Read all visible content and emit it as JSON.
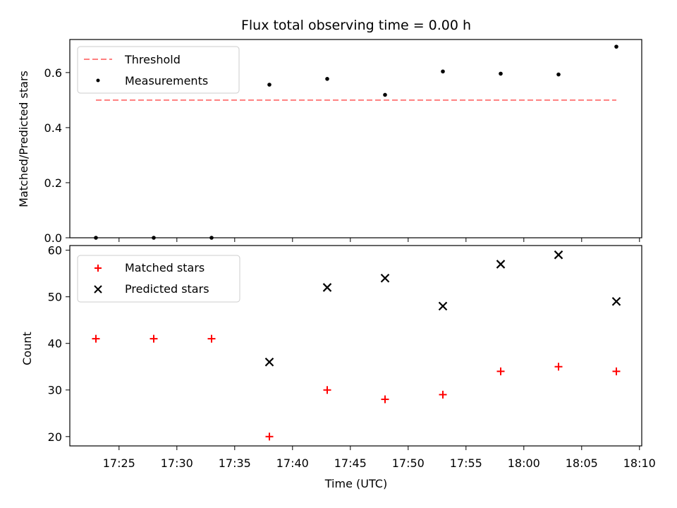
{
  "chart_data": [
    {
      "type": "scatter",
      "title": "Flux total observing time = 0.00 h",
      "xlabel": "",
      "ylabel": "Matched/Predicted stars",
      "ylim": [
        0,
        0.72
      ],
      "yticks": [
        "0.0",
        "0.2",
        "0.4",
        "0.6"
      ],
      "ytick_values": [
        0,
        0.2,
        0.4,
        0.6
      ],
      "x": [
        "17:23",
        "17:28",
        "17:33",
        "17:38",
        "17:43",
        "17:48",
        "17:53",
        "17:58",
        "18:03",
        "18:08"
      ],
      "series": [
        {
          "name": "Threshold",
          "style": "dashed-line",
          "color": "#ff7f7f",
          "values": [
            0.5,
            0.5,
            0.5,
            0.5,
            0.5,
            0.5,
            0.5,
            0.5,
            0.5,
            0.5
          ]
        },
        {
          "name": "Measurements",
          "style": "dot",
          "color": "#000000",
          "values": [
            0.0,
            0.0,
            0.0,
            0.556,
            0.577,
            0.519,
            0.604,
            0.596,
            0.593,
            0.694
          ]
        }
      ],
      "legend": "top-left"
    },
    {
      "type": "scatter",
      "title": "",
      "xlabel": "Time (UTC)",
      "ylabel": "Count",
      "ylim": [
        18,
        61
      ],
      "yticks": [
        "20",
        "30",
        "40",
        "50",
        "60"
      ],
      "ytick_values": [
        20,
        30,
        40,
        50,
        60
      ],
      "x": [
        "17:23",
        "17:28",
        "17:33",
        "17:38",
        "17:43",
        "17:48",
        "17:53",
        "17:58",
        "18:03",
        "18:08"
      ],
      "xticks": [
        "17:25",
        "17:30",
        "17:35",
        "17:40",
        "17:45",
        "17:50",
        "17:55",
        "18:00",
        "18:05",
        "18:10"
      ],
      "series": [
        {
          "name": "Matched stars",
          "marker": "+",
          "color": "#ff0000",
          "values": [
            41,
            41,
            41,
            20,
            30,
            28,
            29,
            34,
            35,
            34
          ]
        },
        {
          "name": "Predicted stars",
          "marker": "x",
          "color": "#000000",
          "values": [
            null,
            null,
            null,
            36,
            52,
            54,
            48,
            57,
            59,
            49
          ]
        }
      ],
      "legend": "top-left"
    }
  ]
}
